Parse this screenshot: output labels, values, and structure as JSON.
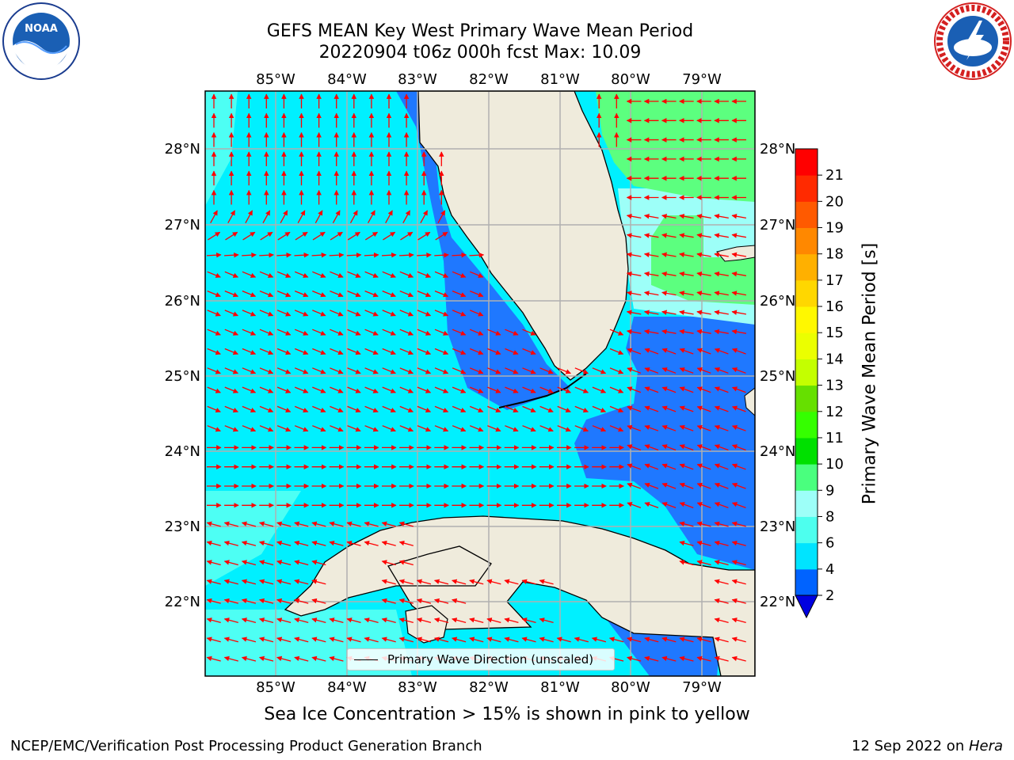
{
  "title_line1": "GEFS MEAN Key West Primary Wave Mean Period",
  "title_line2": "20220904 t06z 000h fcst   Max: 10.09",
  "subtitle": "Sea Ice Concentration > 15% is shown in pink to yellow",
  "footer_left": "NCEP/EMC/Verification Post Processing Product Generation Branch",
  "footer_right_date": "12 Sep 2022 on ",
  "footer_right_host": "Hera",
  "legend_label": "Primary Wave Direction (unscaled)",
  "colorbar_label": "Primary Wave Mean Period [s]",
  "logos": {
    "left": "NOAA",
    "right": "NATIONAL WEATHER SERVICE"
  },
  "lon_labels": [
    "85°W",
    "84°W",
    "83°W",
    "82°W",
    "81°W",
    "80°W",
    "79°W"
  ],
  "lat_labels": [
    "28°N",
    "27°N",
    "26°N",
    "25°N",
    "24°N",
    "23°N",
    "22°N"
  ],
  "colorbar_ticks": [
    "2",
    "4",
    "6",
    "8",
    "9",
    "10",
    "11",
    "12",
    "13",
    "14",
    "15",
    "16",
    "17",
    "18",
    "19",
    "20",
    "21"
  ],
  "colorbar_colors": [
    "#0063ff",
    "#00e4ff",
    "#4dffee",
    "#9dfff8",
    "#4aff7e",
    "#00e000",
    "#35ff00",
    "#66e000",
    "#c4ff00",
    "#ebff00",
    "#fff800",
    "#ffd700",
    "#ffb000",
    "#ff8800",
    "#ff5a00",
    "#ff2a00",
    "#ff0000"
  ],
  "map_colors": {
    "ocean_main": "#00f0ff",
    "ocean_deep_blue": "#1f78ff",
    "ocean_light": "#4dfff4",
    "ocean_green": "#5cff7f",
    "land": "#efebdc",
    "arrow": "#ff0000",
    "grid": "#b0b0b0"
  },
  "chart_data": {
    "type": "map",
    "variable": "Primary Wave Mean Period",
    "units": "s",
    "max": 10.09,
    "lon_range": [
      -86,
      -78.3
    ],
    "lat_range": [
      21,
      28.7
    ],
    "colorbar_levels": [
      2,
      4,
      6,
      8,
      9,
      10,
      11,
      12,
      13,
      14,
      15,
      16,
      17,
      18,
      19,
      20,
      21
    ]
  }
}
